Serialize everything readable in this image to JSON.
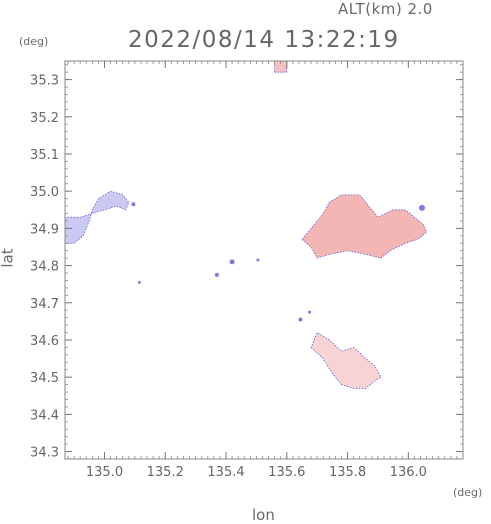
{
  "header": {
    "altitude_label": "ALT(km) 2.0",
    "datetime": "2022/08/14 13:22:19"
  },
  "axes": {
    "y_unit": "(deg)",
    "x_unit": "(deg)",
    "y_title": "lat",
    "x_title": "lon"
  },
  "chart_data": {
    "type": "heatmap",
    "title": "2022/08/14 13:22:19",
    "subtitle": "ALT(km) 2.0",
    "xlabel": "lon",
    "ylabel": "lat",
    "xunit": "(deg)",
    "yunit": "(deg)",
    "xlim": [
      134.87,
      136.18
    ],
    "ylim": [
      34.28,
      35.35
    ],
    "xticks": [
      "135.0",
      "135.2",
      "135.4",
      "135.6",
      "135.8",
      "136.0"
    ],
    "xtick_values": [
      135.0,
      135.2,
      135.4,
      135.6,
      135.8,
      136.0
    ],
    "yticks": [
      "34.3",
      "34.4",
      "34.5",
      "34.6",
      "34.7",
      "34.8",
      "34.9",
      "35.0",
      "35.1",
      "35.2",
      "35.3"
    ],
    "ytick_values": [
      34.3,
      34.4,
      34.5,
      34.6,
      34.7,
      34.8,
      34.9,
      35.0,
      35.1,
      35.2,
      35.3
    ],
    "grid": false,
    "colors": {
      "approaching": "#c8c8f4",
      "receding": "#f4b4b4",
      "receding_light": "#f8d2d2",
      "edge": "#5a5ad8"
    },
    "echo_regions": [
      {
        "name": "west-cluster",
        "color": "#c9c9f2",
        "points": [
          [
            134.87,
            34.86
          ],
          [
            134.9,
            34.86
          ],
          [
            134.93,
            34.88
          ],
          [
            134.95,
            34.92
          ],
          [
            134.96,
            34.95
          ],
          [
            134.98,
            34.98
          ],
          [
            135.02,
            35.0
          ],
          [
            135.06,
            34.99
          ],
          [
            135.08,
            34.97
          ],
          [
            135.07,
            34.95
          ],
          [
            135.04,
            34.96
          ],
          [
            135.0,
            34.95
          ],
          [
            134.96,
            34.94
          ],
          [
            134.92,
            34.93
          ],
          [
            134.87,
            34.93
          ]
        ]
      },
      {
        "name": "east-cluster",
        "color": "#f4b5b5",
        "points": [
          [
            135.65,
            34.87
          ],
          [
            135.68,
            34.85
          ],
          [
            135.7,
            34.82
          ],
          [
            135.74,
            34.83
          ],
          [
            135.8,
            34.84
          ],
          [
            135.86,
            34.83
          ],
          [
            135.91,
            34.82
          ],
          [
            135.94,
            34.84
          ],
          [
            135.99,
            34.86
          ],
          [
            136.03,
            34.87
          ],
          [
            136.06,
            34.89
          ],
          [
            136.05,
            34.91
          ],
          [
            136.02,
            34.93
          ],
          [
            135.99,
            34.95
          ],
          [
            135.95,
            34.95
          ],
          [
            135.9,
            34.93
          ],
          [
            135.87,
            34.96
          ],
          [
            135.84,
            34.99
          ],
          [
            135.78,
            34.99
          ],
          [
            135.74,
            34.97
          ],
          [
            135.72,
            34.94
          ],
          [
            135.69,
            34.91
          ]
        ]
      },
      {
        "name": "southeast-cluster",
        "color": "#f8d3d3",
        "points": [
          [
            135.68,
            34.58
          ],
          [
            135.72,
            34.55
          ],
          [
            135.75,
            34.51
          ],
          [
            135.78,
            34.48
          ],
          [
            135.82,
            34.47
          ],
          [
            135.86,
            34.47
          ],
          [
            135.89,
            34.49
          ],
          [
            135.91,
            34.5
          ],
          [
            135.89,
            34.53
          ],
          [
            135.86,
            34.55
          ],
          [
            135.82,
            34.58
          ],
          [
            135.78,
            34.57
          ],
          [
            135.74,
            34.6
          ],
          [
            135.7,
            34.62
          ]
        ]
      },
      {
        "name": "north-spot",
        "color": "#f4c0c0",
        "points": [
          [
            135.56,
            35.32
          ],
          [
            135.6,
            35.32
          ],
          [
            135.6,
            35.35
          ],
          [
            135.56,
            35.35
          ]
        ]
      }
    ],
    "speckles": [
      {
        "lon": 135.095,
        "lat": 34.965,
        "r": 2
      },
      {
        "lon": 135.115,
        "lat": 34.755,
        "r": 1.5
      },
      {
        "lon": 135.37,
        "lat": 34.775,
        "r": 2
      },
      {
        "lon": 135.42,
        "lat": 34.81,
        "r": 2.5
      },
      {
        "lon": 135.505,
        "lat": 34.815,
        "r": 1.5
      },
      {
        "lon": 135.645,
        "lat": 34.655,
        "r": 2
      },
      {
        "lon": 135.675,
        "lat": 34.675,
        "r": 1.5
      },
      {
        "lon": 136.045,
        "lat": 34.955,
        "r": 3
      }
    ]
  }
}
